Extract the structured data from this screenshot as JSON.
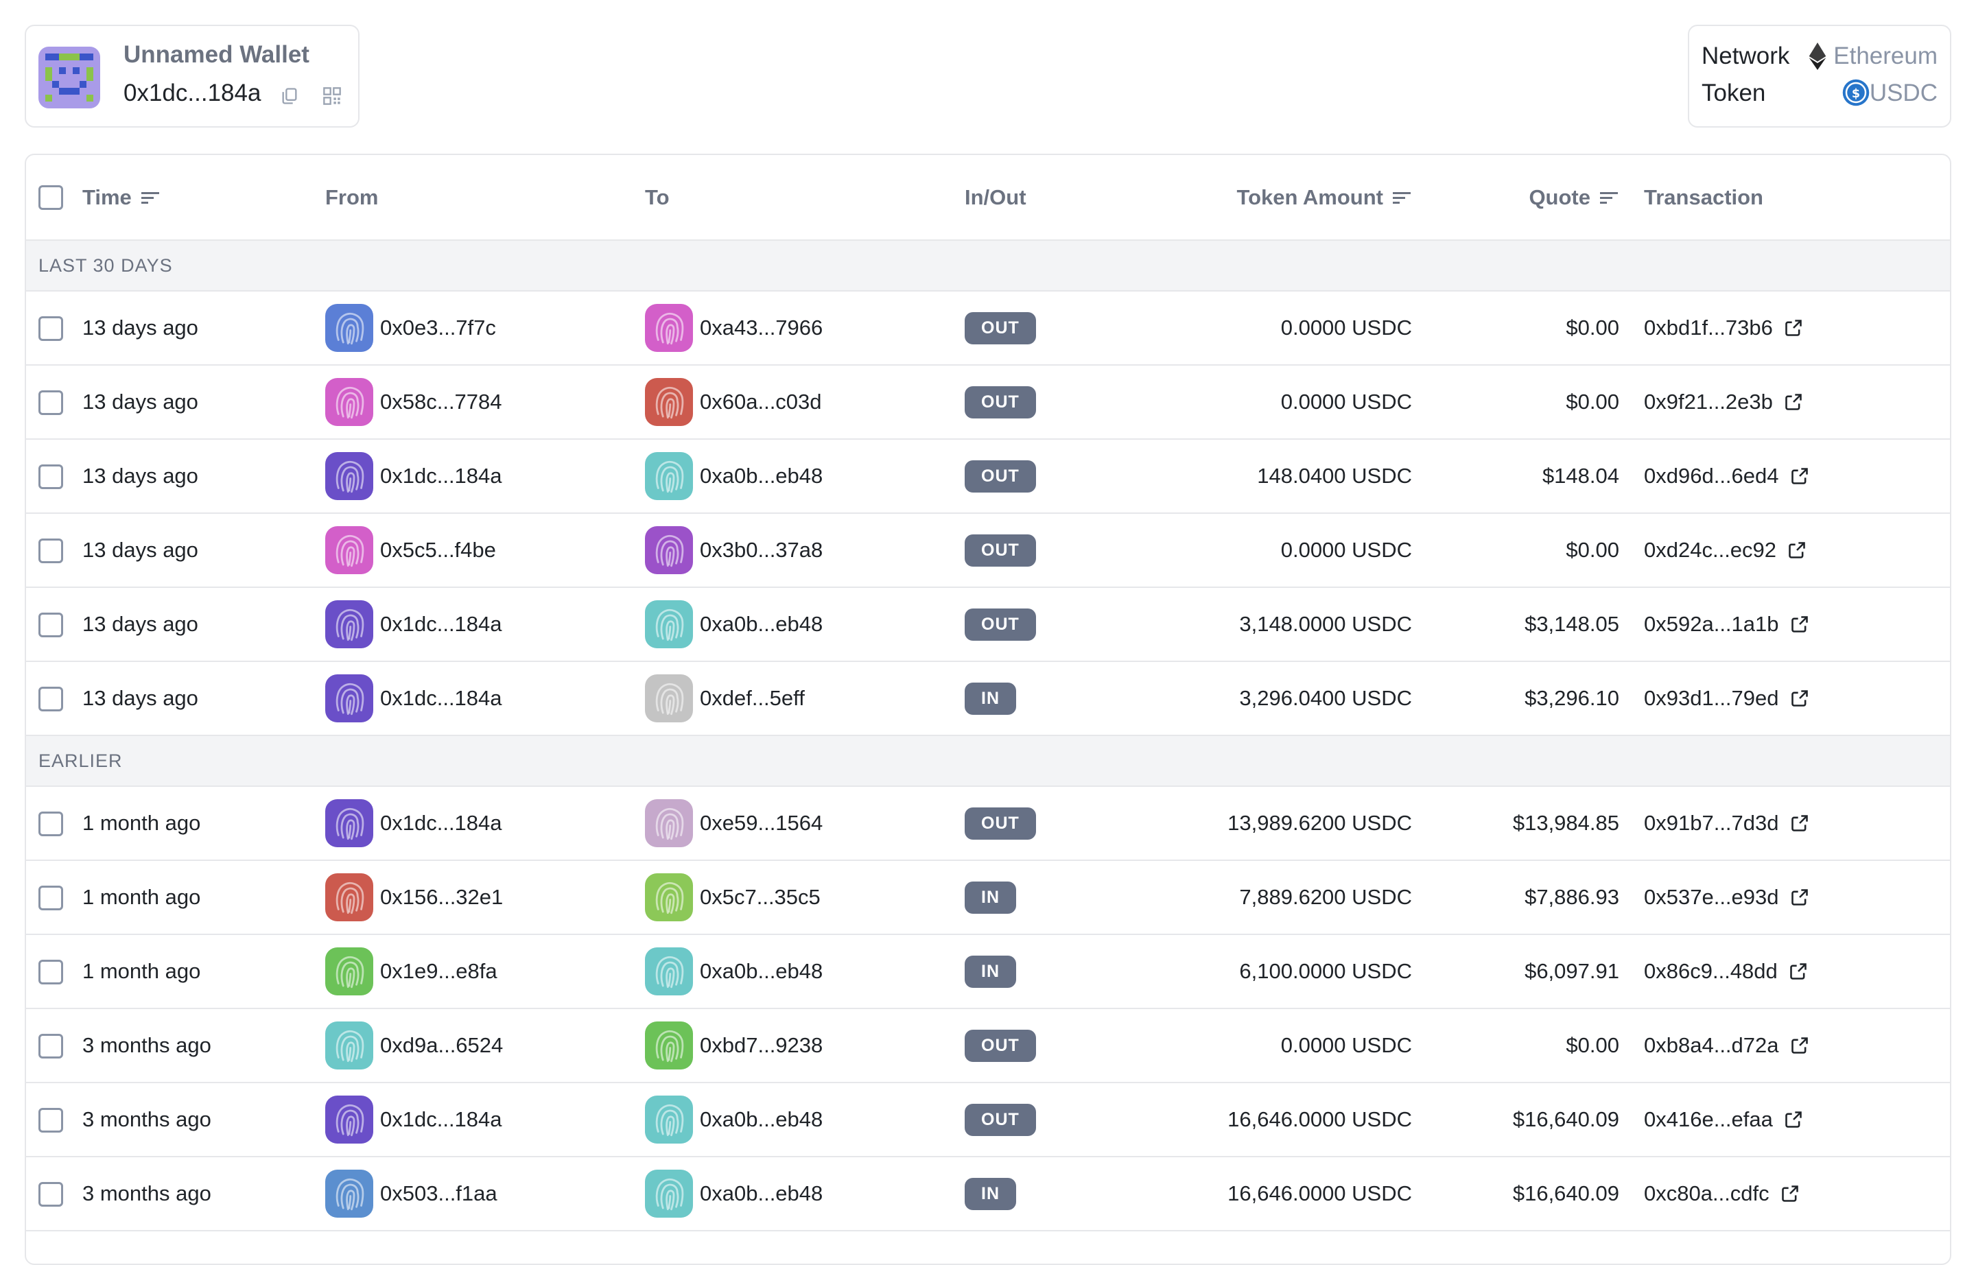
{
  "wallet": {
    "name": "Unnamed Wallet",
    "address": "0x1dc...184a"
  },
  "filters": {
    "network_label": "Network",
    "network_value": "Ethereum",
    "token_label": "Token",
    "token_value": "USDC"
  },
  "table": {
    "columns": [
      "Time",
      "From",
      "To",
      "In/Out",
      "Token Amount",
      "Quote",
      "Transaction"
    ],
    "groups": [
      {
        "label": "LAST 30 DAYS",
        "rows": [
          {
            "time": "13 days ago",
            "from": "0x0e3...7f7c",
            "from_color": "#5b7fd6",
            "to": "0xa43...7966",
            "to_color": "#d35fc9",
            "dir": "OUT",
            "amount": "0.0000 USDC",
            "quote": "$0.00",
            "tx": "0xbd1f...73b6"
          },
          {
            "time": "13 days ago",
            "from": "0x58c...7784",
            "from_color": "#d35fc9",
            "to": "0x60a...c03d",
            "to_color": "#cc5a4e",
            "dir": "OUT",
            "amount": "0.0000 USDC",
            "quote": "$0.00",
            "tx": "0x9f21...2e3b"
          },
          {
            "time": "13 days ago",
            "from": "0x1dc...184a",
            "from_color": "#6a4fc8",
            "to": "0xa0b...eb48",
            "to_color": "#6cc8c8",
            "dir": "OUT",
            "amount": "148.0400 USDC",
            "quote": "$148.04",
            "tx": "0xd96d...6ed4"
          },
          {
            "time": "13 days ago",
            "from": "0x5c5...f4be",
            "from_color": "#d35fc9",
            "to": "0x3b0...37a8",
            "to_color": "#9b52c9",
            "dir": "OUT",
            "amount": "0.0000 USDC",
            "quote": "$0.00",
            "tx": "0xd24c...ec92"
          },
          {
            "time": "13 days ago",
            "from": "0x1dc...184a",
            "from_color": "#6a4fc8",
            "to": "0xa0b...eb48",
            "to_color": "#6cc8c8",
            "dir": "OUT",
            "amount": "3,148.0000 USDC",
            "quote": "$3,148.05",
            "tx": "0x592a...1a1b"
          },
          {
            "time": "13 days ago",
            "from": "0x1dc...184a",
            "from_color": "#6a4fc8",
            "to": "0xdef...5eff",
            "to_color": "#c4c4c4",
            "dir": "IN",
            "amount": "3,296.0400 USDC",
            "quote": "$3,296.10",
            "tx": "0x93d1...79ed"
          }
        ]
      },
      {
        "label": "EARLIER",
        "rows": [
          {
            "time": "1 month ago",
            "from": "0x1dc...184a",
            "from_color": "#6a4fc8",
            "to": "0xe59...1564",
            "to_color": "#c6a9cc",
            "dir": "OUT",
            "amount": "13,989.6200 USDC",
            "quote": "$13,984.85",
            "tx": "0x91b7...7d3d"
          },
          {
            "time": "1 month ago",
            "from": "0x156...32e1",
            "from_color": "#cc5a4e",
            "to": "0x5c7...35c5",
            "to_color": "#8cc858",
            "dir": "IN",
            "amount": "7,889.6200 USDC",
            "quote": "$7,886.93",
            "tx": "0x537e...e93d"
          },
          {
            "time": "1 month ago",
            "from": "0x1e9...e8fa",
            "from_color": "#6cc258",
            "to": "0xa0b...eb48",
            "to_color": "#6cc8c8",
            "dir": "IN",
            "amount": "6,100.0000 USDC",
            "quote": "$6,097.91",
            "tx": "0x86c9...48dd"
          },
          {
            "time": "3 months ago",
            "from": "0xd9a...6524",
            "from_color": "#6cc8c8",
            "to": "0xbd7...9238",
            "to_color": "#6cc258",
            "dir": "OUT",
            "amount": "0.0000 USDC",
            "quote": "$0.00",
            "tx": "0xb8a4...d72a"
          },
          {
            "time": "3 months ago",
            "from": "0x1dc...184a",
            "from_color": "#6a4fc8",
            "to": "0xa0b...eb48",
            "to_color": "#6cc8c8",
            "dir": "OUT",
            "amount": "16,646.0000 USDC",
            "quote": "$16,640.09",
            "tx": "0x416e...efaa"
          },
          {
            "time": "3 months ago",
            "from": "0x503...f1aa",
            "from_color": "#5b8fcf",
            "to": "0xa0b...eb48",
            "to_color": "#6cc8c8",
            "dir": "IN",
            "amount": "16,646.0000 USDC",
            "quote": "$16,640.09",
            "tx": "0xc80a...cdfc"
          }
        ]
      }
    ]
  },
  "icons": {
    "copy": "copy-icon",
    "qr": "qr-code-icon",
    "network": "ethereum-icon",
    "token": "usdc-icon",
    "sort": "sort-icon",
    "external": "external-link-icon",
    "avatar": "pixel-avatar-icon",
    "fingerprint": "fingerprint-avatar-icon"
  },
  "colors": {
    "badge": "#667085",
    "muted": "#6b7280",
    "border": "#e6e7ea",
    "group_bg": "#f3f4f6",
    "usdc": "#2775ca"
  }
}
